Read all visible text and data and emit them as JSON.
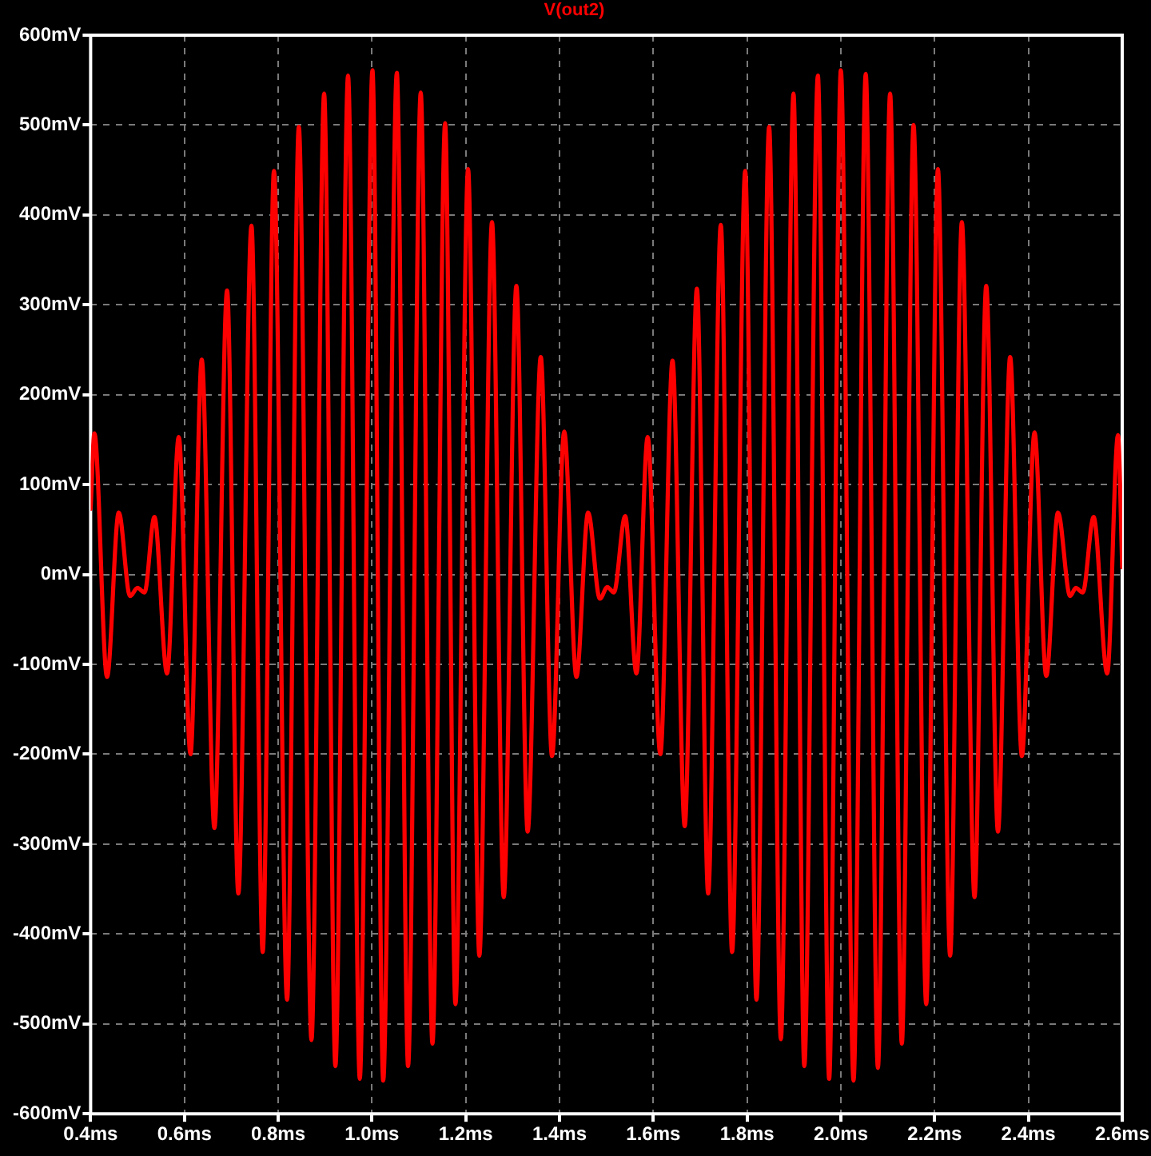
{
  "chart_data": {
    "type": "line",
    "x": [
      0.4,
      0.408,
      0.435,
      0.46,
      0.484,
      0.5,
      0.515,
      0.536,
      0.563,
      0.588,
      0.613,
      0.637,
      0.664,
      0.691,
      0.715,
      0.743,
      0.767,
      0.791,
      0.819,
      0.844,
      0.871,
      0.898,
      0.922,
      0.949,
      0.974,
      1.001,
      1.024,
      1.053,
      1.077,
      1.104,
      1.129,
      1.156,
      1.178,
      1.205,
      1.229,
      1.256,
      1.281,
      1.308,
      1.332,
      1.36,
      1.384,
      1.41,
      1.436,
      1.461,
      1.486,
      1.502,
      1.516,
      1.54,
      1.564,
      1.588,
      1.615,
      1.641,
      1.667,
      1.693,
      1.717,
      1.744,
      1.768,
      1.796,
      1.82,
      1.847,
      1.872,
      1.899,
      1.922,
      1.951,
      1.975,
      2.0,
      2.027,
      2.053,
      2.079,
      2.105,
      2.13,
      2.155,
      2.182,
      2.207,
      2.233,
      2.258,
      2.285,
      2.31,
      2.335,
      2.361,
      2.386,
      2.413,
      2.438,
      2.463,
      2.489,
      2.501,
      2.516,
      2.539,
      2.568,
      2.591,
      2.6
    ],
    "series": [
      {
        "name": "V(out2)",
        "color": "#ff0000",
        "values": [
          73,
          157,
          -114,
          69,
          -24,
          -15,
          -20,
          64,
          -110,
          153,
          -200,
          239,
          -282,
          316,
          -355,
          388,
          -420,
          449,
          -473,
          498,
          -518,
          535,
          -547,
          555,
          -561,
          561,
          -563,
          558,
          -547,
          536,
          -522,
          502,
          -478,
          451,
          -424,
          392,
          -359,
          321,
          -286,
          242,
          -202,
          159,
          -114,
          69,
          -27,
          -14,
          -20,
          65,
          -110,
          153,
          -200,
          238,
          -280,
          318,
          -355,
          389,
          -420,
          449,
          -473,
          498,
          -517,
          535,
          -547,
          555,
          -561,
          561,
          -563,
          557,
          -549,
          535,
          -522,
          500,
          -478,
          451,
          -424,
          392,
          -359,
          321,
          -286,
          242,
          -202,
          158,
          -113,
          69,
          -24,
          -15,
          -20,
          64,
          -110,
          155,
          8
        ]
      }
    ],
    "xlim": [
      0.4,
      2.6
    ],
    "xticks": [
      {
        "value": 0.4,
        "label": "0.4ms"
      },
      {
        "value": 0.6,
        "label": "0.6ms"
      },
      {
        "value": 0.8,
        "label": "0.8ms"
      },
      {
        "value": 1.0,
        "label": "1.0ms"
      },
      {
        "value": 1.2,
        "label": "1.2ms"
      },
      {
        "value": 1.4,
        "label": "1.4ms"
      },
      {
        "value": 1.6,
        "label": "1.6ms"
      },
      {
        "value": 1.8,
        "label": "1.8ms"
      },
      {
        "value": 2.0,
        "label": "2.0ms"
      },
      {
        "value": 2.2,
        "label": "2.2ms"
      },
      {
        "value": 2.4,
        "label": "2.4ms"
      },
      {
        "value": 2.6,
        "label": "2.6ms"
      }
    ],
    "ylim": [
      -600,
      600
    ],
    "yticks": [
      {
        "value": -600,
        "label": "-600mV"
      },
      {
        "value": -500,
        "label": "-500mV"
      },
      {
        "value": -400,
        "label": "-400mV"
      },
      {
        "value": -300,
        "label": "-300mV"
      },
      {
        "value": -200,
        "label": "-200mV"
      },
      {
        "value": -100,
        "label": "-100mV"
      },
      {
        "value": 0,
        "label": "0mV"
      },
      {
        "value": 100,
        "label": "100mV"
      },
      {
        "value": 200,
        "label": "200mV"
      },
      {
        "value": 300,
        "label": "300mV"
      },
      {
        "value": 400,
        "label": "400mV"
      },
      {
        "value": 500,
        "label": "500mV"
      },
      {
        "value": 600,
        "label": "600mV"
      }
    ],
    "grid": true,
    "legend": "top",
    "marker": "none"
  }
}
